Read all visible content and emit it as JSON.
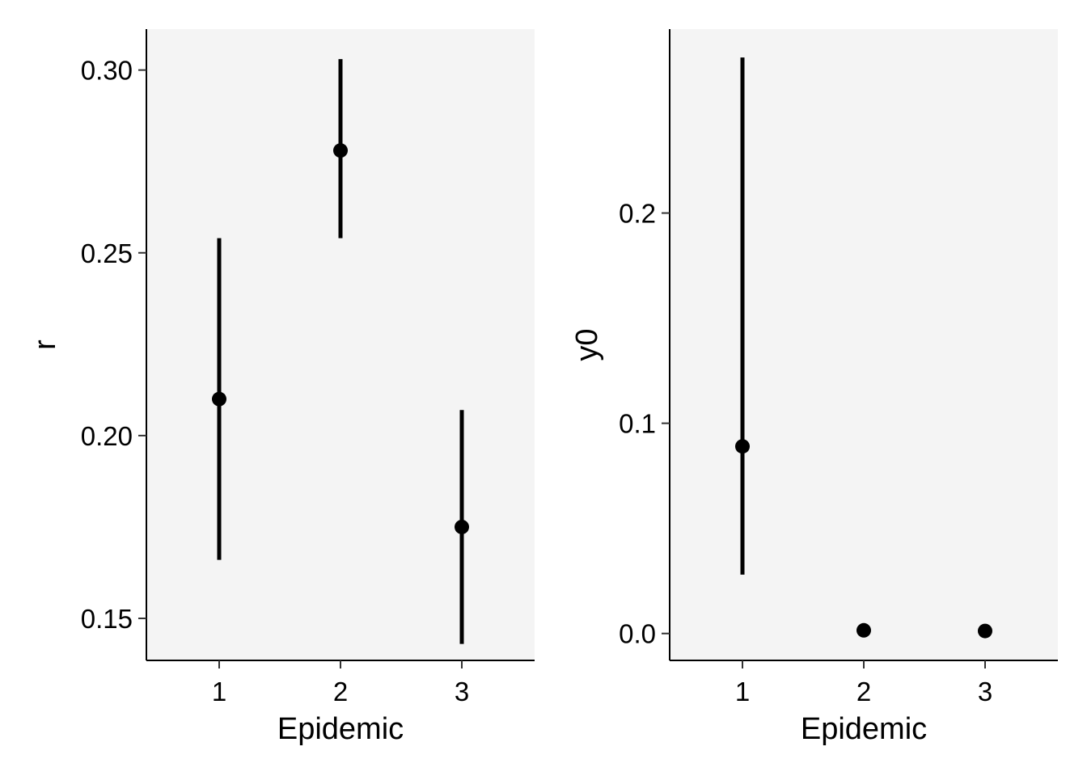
{
  "chart_data": [
    {
      "type": "scatter",
      "title": "",
      "xlabel": "Epidemic",
      "ylabel": "r",
      "x_categories": [
        "1",
        "2",
        "3"
      ],
      "xlim": [
        0.4,
        3.6
      ],
      "ylim": [
        0.1385,
        0.3112
      ],
      "y_ticks": [
        "0.15",
        "0.20",
        "0.25",
        "0.30"
      ],
      "y_tick_values": [
        0.15,
        0.2,
        0.25,
        0.3
      ],
      "grid": false,
      "panel_background": "#f4f4f4",
      "series": [
        {
          "x": [
            1,
            2,
            3
          ],
          "y": [
            0.21,
            0.278,
            0.175
          ],
          "ymin": [
            0.166,
            0.254,
            0.143
          ],
          "ymax": [
            0.254,
            0.303,
            0.207
          ]
        }
      ]
    },
    {
      "type": "scatter",
      "title": "",
      "xlabel": "Epidemic",
      "ylabel": "y0",
      "x_categories": [
        "1",
        "2",
        "3"
      ],
      "xlim": [
        0.4,
        3.6
      ],
      "ylim": [
        -0.0128,
        0.2875
      ],
      "y_ticks": [
        "0.0",
        "0.1",
        "0.2"
      ],
      "y_tick_values": [
        0.0,
        0.1,
        0.2
      ],
      "grid": false,
      "panel_background": "#f4f4f4",
      "series": [
        {
          "x": [
            1,
            2,
            3
          ],
          "y": [
            0.089,
            0.0015,
            0.0012
          ],
          "ymin": [
            0.028,
            0.0015,
            0.0012
          ],
          "ymax": [
            0.274,
            0.0015,
            0.0012
          ]
        }
      ]
    }
  ]
}
